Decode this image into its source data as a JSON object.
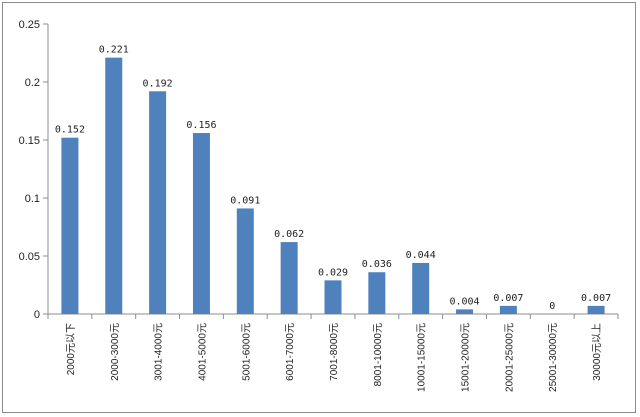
{
  "chart_data": {
    "type": "bar",
    "title": "",
    "xlabel": "",
    "ylabel": "",
    "categories": [
      "2000元以下",
      "2000-3000元",
      "3001-4000元",
      "4001-5000元",
      "5001-6000元",
      "6001-7000元",
      "7001-8000元",
      "8001-10000元",
      "10001-15000元",
      "15001-20000元",
      "20001-25000元",
      "25001-30000元",
      "30000元以上"
    ],
    "values": [
      0.152,
      0.221,
      0.192,
      0.156,
      0.091,
      0.062,
      0.029,
      0.036,
      0.044,
      0.004,
      0.007,
      0,
      0.007
    ],
    "data_labels": [
      "0.152",
      "0.221",
      "0.192",
      "0.156",
      "0.091",
      "0.062",
      "0.029",
      "0.036",
      "0.044",
      "0.004",
      "0.007",
      "0",
      "0.007"
    ],
    "ylim": [
      0,
      0.25
    ],
    "yticks": [
      "0",
      "0.05",
      "0.1",
      "0.15",
      "0.2",
      "0.25"
    ],
    "grid": false,
    "legend": "none",
    "bar_color": "#4f81bd"
  }
}
